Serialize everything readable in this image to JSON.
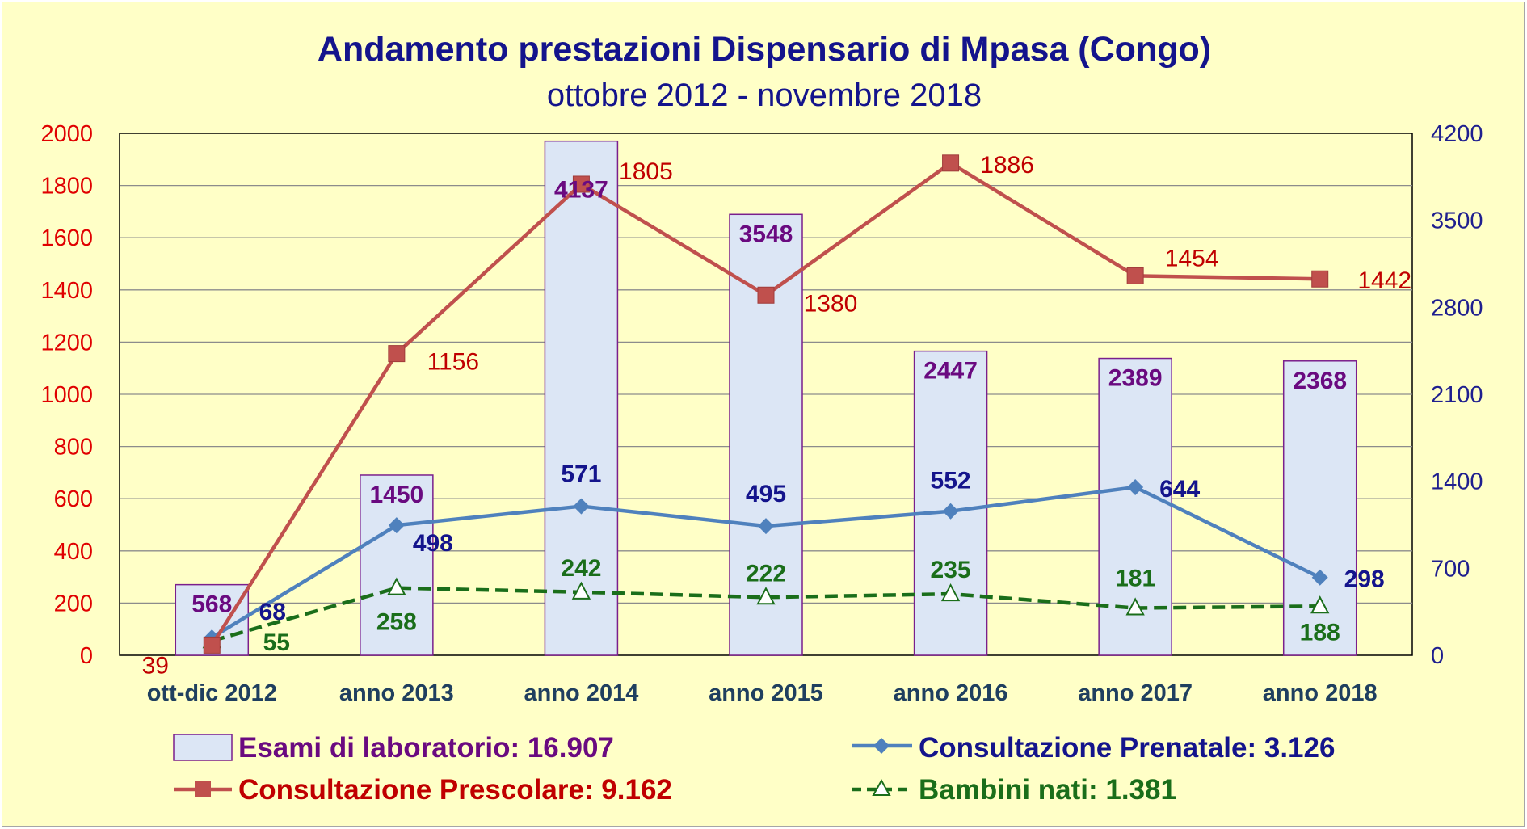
{
  "chart_data": {
    "type": "bar",
    "title": "Andamento prestazioni Dispensario di Mpasa (Congo)",
    "subtitle": "ottobre 2012 - novembre 2018",
    "categories": [
      "ott-dic 2012",
      "anno 2013",
      "anno 2014",
      "anno 2015",
      "anno 2016",
      "anno 2017",
      "anno 2018"
    ],
    "y_left": {
      "min": 0,
      "max": 2000,
      "ticks": [
        "0",
        "200",
        "400",
        "600",
        "800",
        "1000",
        "1200",
        "1400",
        "1600",
        "1800",
        "2000"
      ]
    },
    "y_right": {
      "min": 0,
      "max": 4200,
      "ticks": [
        "0",
        "700",
        "1400",
        "2100",
        "2800",
        "3500",
        "4200"
      ]
    },
    "grid": true,
    "legend_position": "bottom",
    "series": [
      {
        "name": "Esami di laboratorio: 16.907",
        "kind": "bar",
        "axis": "right",
        "values": [
          568,
          1450,
          4137,
          3548,
          2447,
          2389,
          2368
        ],
        "color": "#dce6f5",
        "border": "#7a1f8c",
        "label_color": "#6a0a80"
      },
      {
        "name": "Consultazione Prescolare: 9.162",
        "kind": "line",
        "marker": "square",
        "axis": "left",
        "values": [
          39,
          1156,
          1805,
          1380,
          1886,
          1454,
          1442
        ],
        "color": "#c0504d",
        "label_color": "#c00000"
      },
      {
        "name": "Consultazione Prenatale: 3.126",
        "kind": "line",
        "marker": "diamond",
        "axis": "left",
        "values": [
          68,
          498,
          571,
          495,
          552,
          644,
          298
        ],
        "color": "#4f81bd",
        "label_color": "#14148c"
      },
      {
        "name": "Bambini nati: 1.381",
        "kind": "line",
        "marker": "triangle",
        "dashed": true,
        "axis": "left",
        "values": [
          55,
          258,
          242,
          222,
          235,
          181,
          188
        ],
        "color": "#1a6e1a",
        "label_color": "#1a6e1a"
      }
    ]
  }
}
